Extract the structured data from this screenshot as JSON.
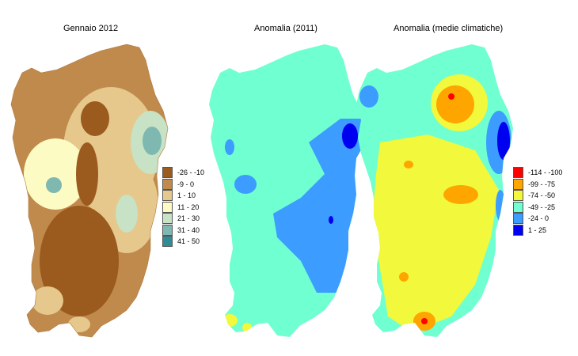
{
  "panels": [
    {
      "title": "Gennaio 2012"
    },
    {
      "title": "Anomalia (2011)"
    },
    {
      "title": "Anomalia (medie climatiche)"
    }
  ],
  "legend_january": [
    {
      "label": "-26 - -10",
      "color": "#9b5a1e"
    },
    {
      "label": "-9 - 0",
      "color": "#c08a4c"
    },
    {
      "label": "1 - 10",
      "color": "#e6c88c"
    },
    {
      "label": "11 - 20",
      "color": "#fdfbc4"
    },
    {
      "label": "21 - 30",
      "color": "#c7e2c4"
    },
    {
      "label": "31 - 40",
      "color": "#7fb8b0"
    },
    {
      "label": "41 - 50",
      "color": "#2f8c96"
    }
  ],
  "legend_anomaly": [
    {
      "label": "-114 - -100",
      "color": "#ff0000"
    },
    {
      "label": "-99 - -75",
      "color": "#ffa500"
    },
    {
      "label": "-74 - -50",
      "color": "#f2f83c"
    },
    {
      "label": "-49 - -25",
      "color": "#70ffd0"
    },
    {
      "label": "-24 - 0",
      "color": "#3c9cff"
    },
    {
      "label": "1 - 25",
      "color": "#0000f0"
    }
  ]
}
